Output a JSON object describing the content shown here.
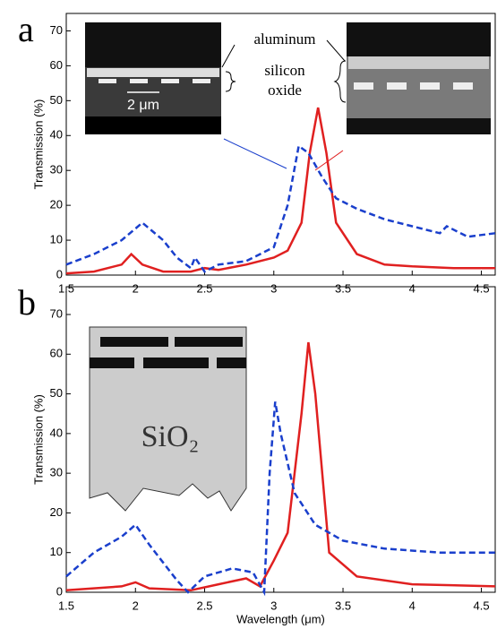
{
  "chart_data": [
    {
      "type": "line",
      "panel_label": "a",
      "ylabel": "Transmission (%)",
      "xlim": [
        1.5,
        4.6
      ],
      "ylim": [
        0,
        75
      ],
      "xticks": [
        1.5,
        2,
        2.5,
        3,
        3.5,
        4,
        4.5
      ],
      "yticks": [
        0,
        10,
        20,
        30,
        40,
        50,
        60,
        70
      ],
      "annotations": [
        "aluminum",
        "silicon",
        "oxide",
        "2 μm"
      ],
      "series": [
        {
          "color": "#e02020",
          "dash": false,
          "x": [
            1.5,
            1.7,
            1.9,
            1.97,
            2.05,
            2.2,
            2.4,
            2.5,
            2.6,
            2.8,
            3.0,
            3.1,
            3.2,
            3.26,
            3.32,
            3.38,
            3.45,
            3.6,
            3.8,
            4.0,
            4.3,
            4.6
          ],
          "values": [
            0.5,
            1,
            3,
            6,
            3,
            1,
            1,
            2,
            1.5,
            3,
            5,
            7,
            15,
            35,
            48,
            35,
            15,
            6,
            3,
            2.5,
            2,
            2
          ]
        },
        {
          "color": "#1a3fcc",
          "dash": true,
          "x": [
            1.5,
            1.7,
            1.9,
            2.05,
            2.2,
            2.3,
            2.4,
            2.43,
            2.5,
            2.6,
            2.8,
            3.0,
            3.1,
            3.18,
            3.25,
            3.35,
            3.45,
            3.6,
            3.8,
            4.0,
            4.2,
            4.25,
            4.4,
            4.6
          ],
          "values": [
            3,
            6,
            10,
            15,
            10,
            5,
            2,
            5,
            1,
            3,
            4,
            8,
            20,
            37,
            35,
            28,
            22,
            19,
            16,
            14,
            12,
            14,
            11,
            12
          ]
        }
      ]
    },
    {
      "type": "line",
      "panel_label": "b",
      "ylabel": "Transmission (%)",
      "xlabel": "Wavelength (μm)",
      "xlim": [
        1.5,
        4.6
      ],
      "ylim": [
        0,
        77
      ],
      "xticks": [
        1.5,
        2,
        2.5,
        3,
        3.5,
        4,
        4.5
      ],
      "yticks": [
        0,
        10,
        20,
        30,
        40,
        50,
        60,
        70
      ],
      "annotations": [
        "SiO₂"
      ],
      "series": [
        {
          "color": "#e02020",
          "dash": false,
          "x": [
            1.5,
            1.9,
            2.0,
            2.1,
            2.4,
            2.6,
            2.8,
            2.9,
            3.0,
            3.1,
            3.2,
            3.25,
            3.3,
            3.4,
            3.6,
            4.0,
            4.6
          ],
          "values": [
            0.5,
            1.5,
            2.5,
            1,
            0.5,
            2,
            3.5,
            1.5,
            8,
            15,
            45,
            63,
            50,
            10,
            4,
            2,
            1.5
          ]
        },
        {
          "color": "#1a3fcc",
          "dash": true,
          "x": [
            1.5,
            1.7,
            1.9,
            2.0,
            2.1,
            2.3,
            2.38,
            2.5,
            2.7,
            2.85,
            2.93,
            2.97,
            3.01,
            3.05,
            3.15,
            3.3,
            3.5,
            3.8,
            4.2,
            4.6
          ],
          "values": [
            4,
            10,
            14,
            17,
            12,
            3,
            0,
            4,
            6,
            5,
            0,
            30,
            48,
            40,
            25,
            17,
            13,
            11,
            10,
            10
          ]
        }
      ]
    }
  ]
}
